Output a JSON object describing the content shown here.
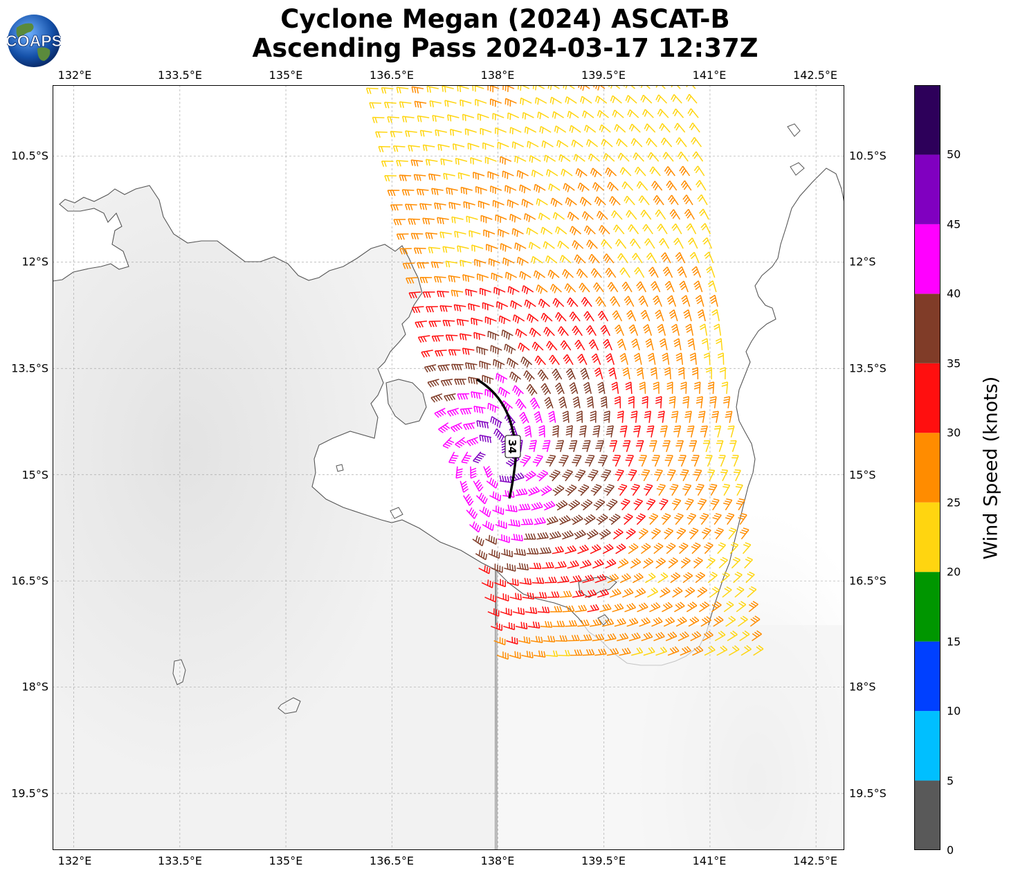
{
  "title": {
    "line1": "Cyclone Megan (2024) ASCAT-B",
    "line2": "Ascending Pass 2024-03-17 12:37Z"
  },
  "logo": {
    "text": "COAPS",
    "icon": "globe-logo-icon"
  },
  "map": {
    "lon_labels": [
      "132°E",
      "133.5°E",
      "135°E",
      "136.5°E",
      "138°E",
      "139.5°E",
      "141°E",
      "142.5°E"
    ],
    "lat_labels": [
      "10.5°S",
      "12°S",
      "13.5°S",
      "15°S",
      "16.5°S",
      "18°S",
      "19.5°S"
    ],
    "lon_range": [
      131.7,
      142.9
    ],
    "lat_range": [
      -20.3,
      -9.5
    ],
    "gridlines": true,
    "wind_radius_label": "34",
    "storm_center": {
      "lon": 137.95,
      "lat": -14.75
    },
    "swath_edges": {
      "west_top_lon": 136.2,
      "west_bottom_lon": 137.9,
      "east_top_lon": 140.9,
      "east_bottom_lon": 141.7
    }
  },
  "colorbar": {
    "label": "Wind Speed (knots)",
    "ticks": [
      "0",
      "5",
      "10",
      "15",
      "20",
      "25",
      "30",
      "35",
      "40",
      "45",
      "50"
    ],
    "bins": [
      {
        "min": 0,
        "max": 5,
        "color": "#595959"
      },
      {
        "min": 5,
        "max": 10,
        "color": "#00bfff"
      },
      {
        "min": 10,
        "max": 15,
        "color": "#0040ff"
      },
      {
        "min": 15,
        "max": 20,
        "color": "#009600"
      },
      {
        "min": 20,
        "max": 25,
        "color": "#ffd510"
      },
      {
        "min": 25,
        "max": 30,
        "color": "#ff8c00"
      },
      {
        "min": 30,
        "max": 35,
        "color": "#ff0f0f"
      },
      {
        "min": 35,
        "max": 40,
        "color": "#803c28"
      },
      {
        "min": 40,
        "max": 45,
        "color": "#ff00ff"
      },
      {
        "min": 45,
        "max": 50,
        "color": "#8000c0"
      },
      {
        "min": 50,
        "max": 55,
        "color": "#2d005a"
      }
    ]
  }
}
